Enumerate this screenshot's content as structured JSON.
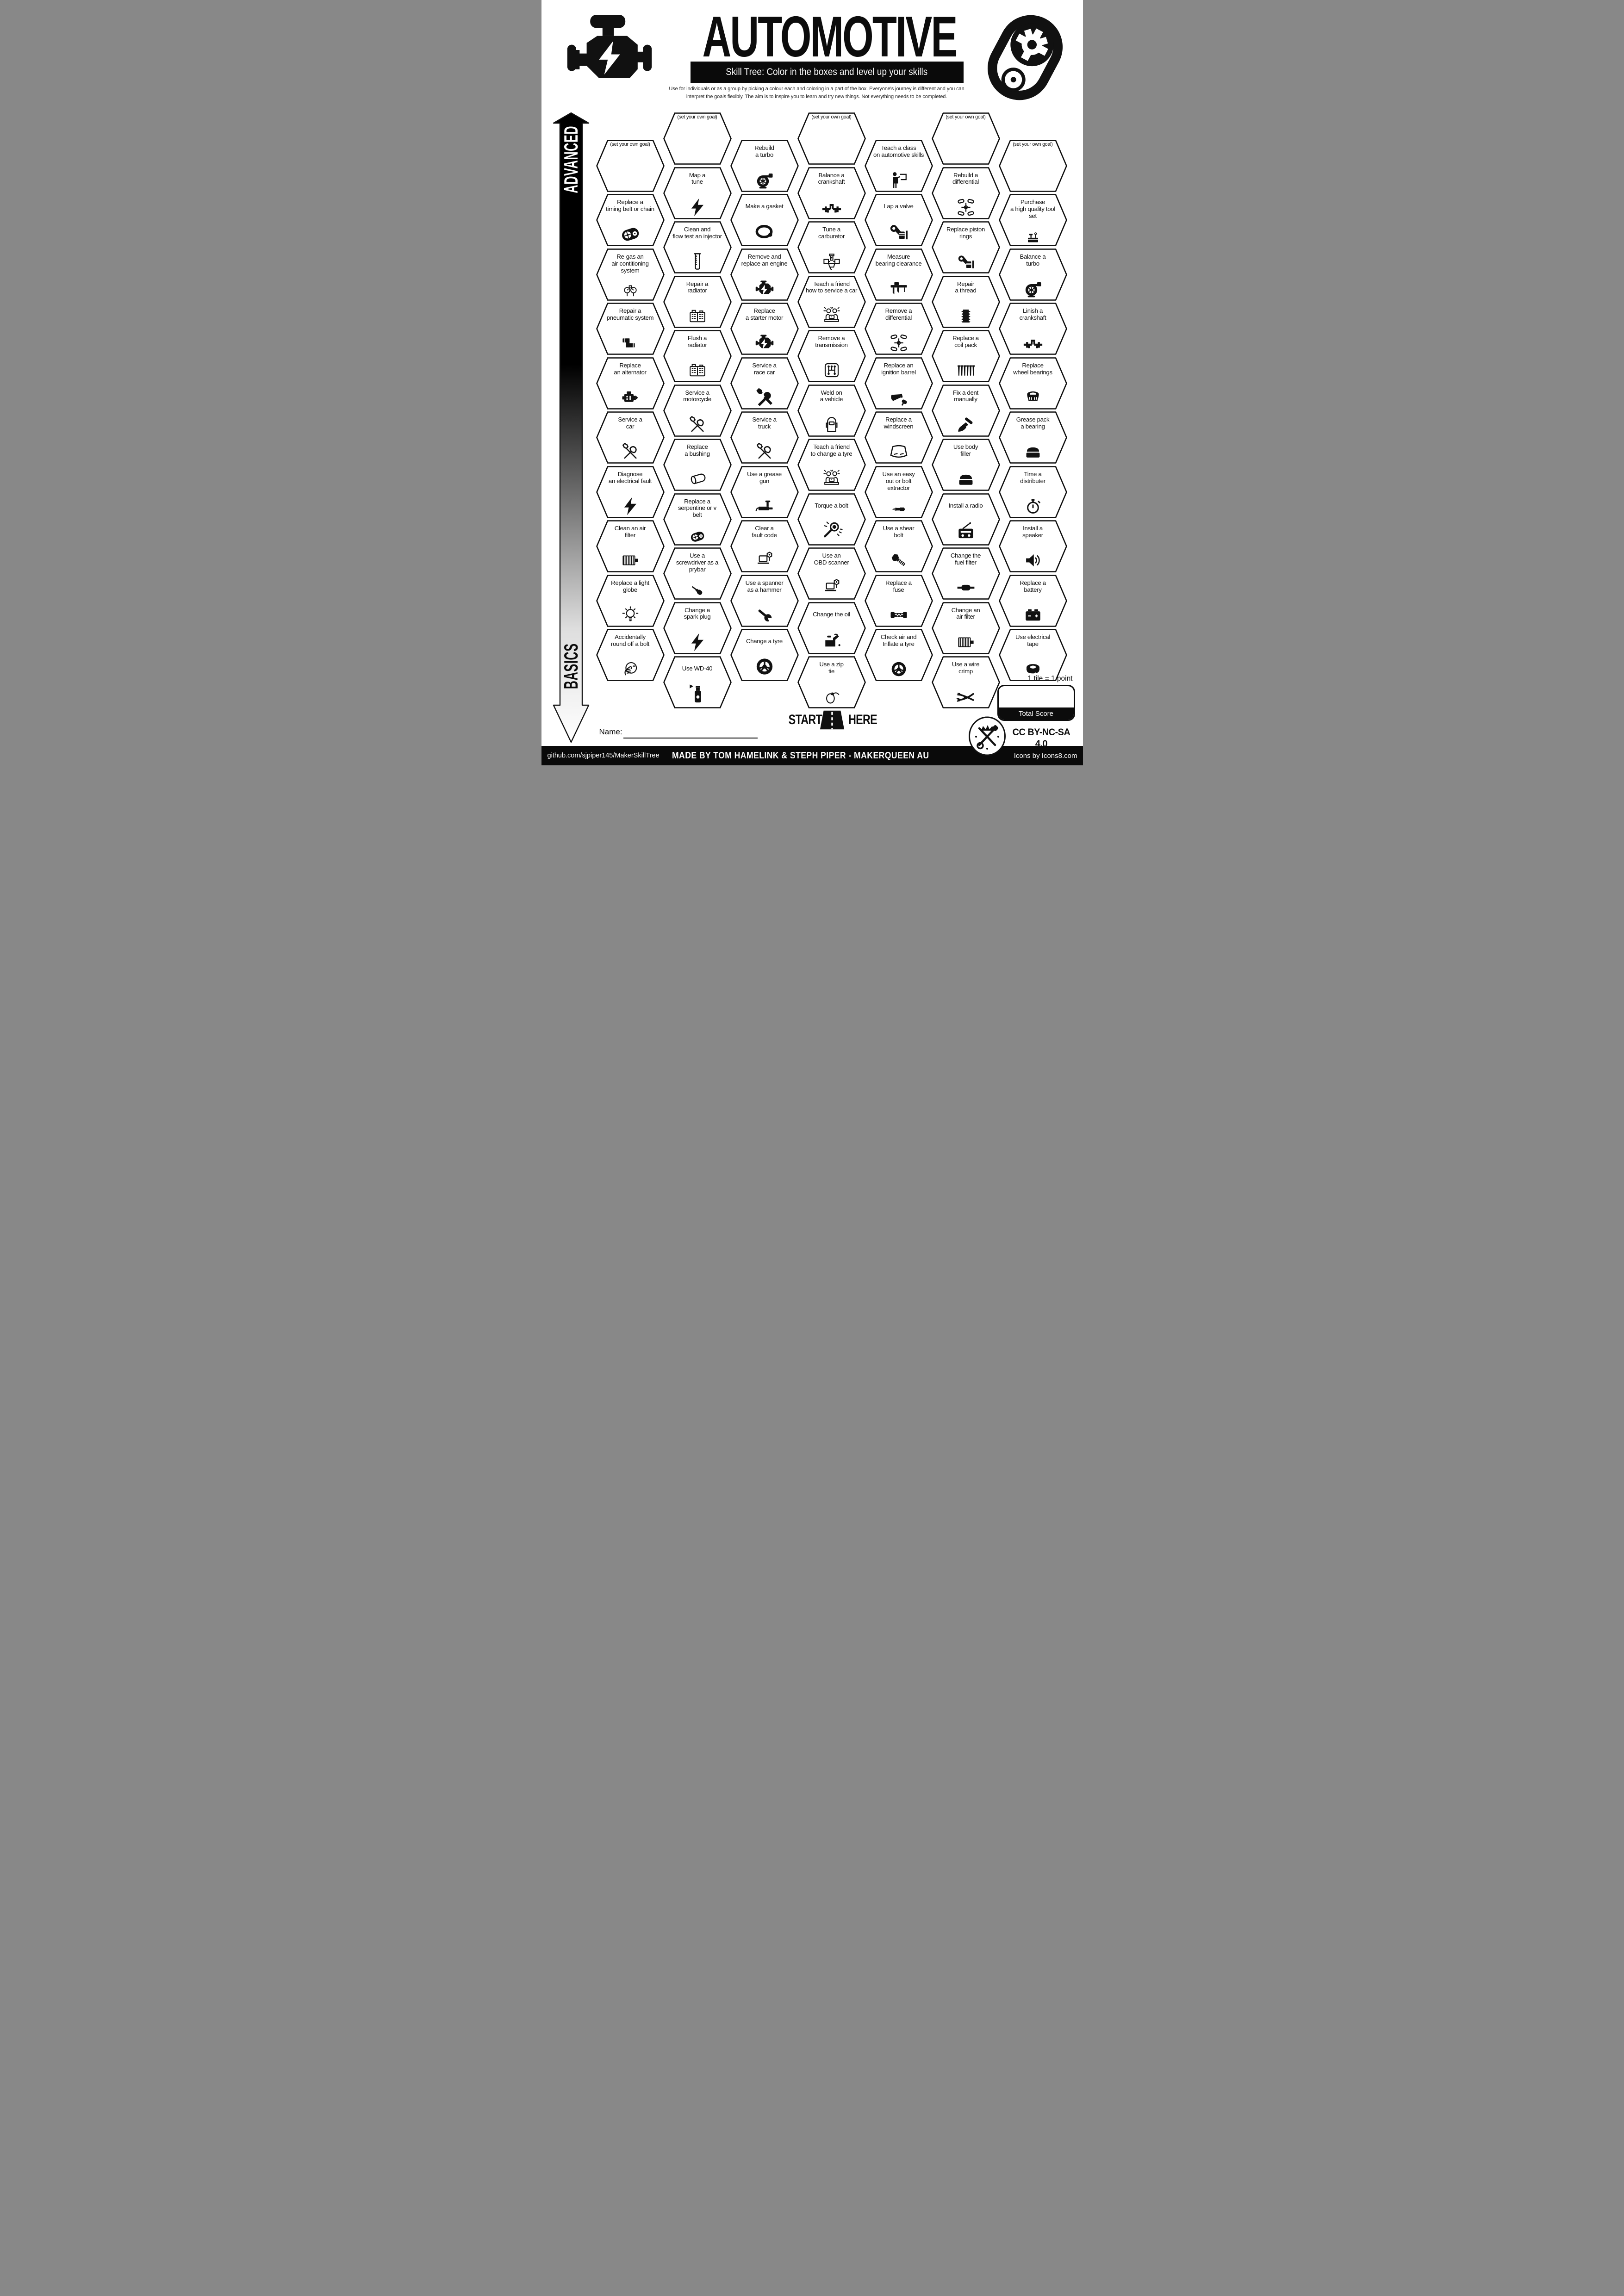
{
  "colors": {
    "ink": "#0c0c0c",
    "paper": "#ffffff"
  },
  "header": {
    "title": "AUTOMOTIVE",
    "subtitle": "Skill Tree:  Color in the boxes and level up your skills",
    "description_line1": "Use for individuals or as a group by picking a colour each and coloring in a part of the box.  Everyone's journey is different and you can",
    "description_line2": "interpret the goals flexibly.  The aim is to inspire you to learn and try new things. Not everything needs to be completed."
  },
  "axis": {
    "top_label": "ADVANCED",
    "bottom_label": "BASICS"
  },
  "goal_label": "(set your own goal)",
  "start": {
    "start_label": "START",
    "here_label": "HERE"
  },
  "name_label": "Name:",
  "score": {
    "tile_note": "1 tile = 1 point",
    "total_label": "Total Score"
  },
  "license_label": "CC BY-NC-SA 4.0",
  "footer": {
    "left": "github.com/sjpiper145/MakerSkillTree",
    "center": "MADE BY TOM HAMELINK & STEPH PIPER  -  MAKERQUEEN AU",
    "right": "Icons by Icons8.com"
  },
  "columns": [
    {
      "items": [
        {
          "goal": true
        },
        {
          "label": [
            "Replace a",
            "timing belt or chain"
          ],
          "icon": "belt"
        },
        {
          "label": [
            "Re-gas an",
            "air contitioning",
            "system"
          ],
          "icon": "gauges"
        },
        {
          "label": [
            "Repair a",
            "pneumatic system"
          ],
          "icon": "pipe"
        },
        {
          "label": [
            "Replace",
            "an alternator"
          ],
          "icon": "alternator"
        },
        {
          "label": [
            "Service a",
            "car"
          ],
          "icon": "tools-o"
        },
        {
          "label": [
            "Diagnose",
            "an electrical fault"
          ],
          "icon": "bolt"
        },
        {
          "label": [
            "Clean an air",
            "filter"
          ],
          "icon": "airfilter"
        },
        {
          "label": [
            "Replace a light",
            "globe"
          ],
          "icon": "bulb"
        },
        {
          "label": [
            "Accidentally",
            "round off a bolt"
          ],
          "icon": "facepalm"
        }
      ]
    },
    {
      "items": [
        {
          "goal": true
        },
        {
          "label": [
            "Map a",
            "tune"
          ],
          "icon": "bolt"
        },
        {
          "label": [
            "Clean and",
            "flow test an injector"
          ],
          "icon": "beaker"
        },
        {
          "label": [
            "Repair a",
            "radiator"
          ],
          "icon": "radiator"
        },
        {
          "label": [
            "Flush a",
            "radiator"
          ],
          "icon": "radiator"
        },
        {
          "label": [
            "Service a",
            "motorcycle"
          ],
          "icon": "tools-o"
        },
        {
          "label": [
            "Replace",
            "a bushing"
          ],
          "icon": "bushing"
        },
        {
          "label": [
            "Replace a",
            "serpentine or v",
            "belt"
          ],
          "icon": "belt"
        },
        {
          "label": [
            "Use a",
            "screwdriver as a",
            "prybar"
          ],
          "icon": "screwdriver"
        },
        {
          "label": [
            "Change a",
            "spark plug"
          ],
          "icon": "bolt"
        },
        {
          "label": [
            "Use WD-40"
          ],
          "icon": "spray"
        }
      ]
    },
    {
      "items": [
        {
          "label": [
            "Rebuild",
            "a turbo"
          ],
          "icon": "turbo"
        },
        {
          "label": [
            "Make a gasket"
          ],
          "icon": "gasket"
        },
        {
          "label": [
            "Remove and",
            "replace an engine"
          ],
          "icon": "engine"
        },
        {
          "label": [
            "Replace",
            "a starter motor"
          ],
          "icon": "engine"
        },
        {
          "label": [
            "Service a",
            "race car"
          ],
          "icon": "tools-s"
        },
        {
          "label": [
            "Service a",
            "truck"
          ],
          "icon": "tools-o"
        },
        {
          "label": [
            "Use a grease",
            "gun"
          ],
          "icon": "greasegun"
        },
        {
          "label": [
            "Clear a",
            "fault code"
          ],
          "icon": "laptop"
        },
        {
          "label": [
            "Use a spanner",
            "as a hammer"
          ],
          "icon": "wrench"
        },
        {
          "label": [
            "Change a tyre"
          ],
          "icon": "wheel"
        }
      ]
    },
    {
      "items": [
        {
          "goal": true
        },
        {
          "label": [
            "Balance a",
            "crankshaft"
          ],
          "icon": "crank"
        },
        {
          "label": [
            "Tune a",
            "carburetor"
          ],
          "icon": "carb"
        },
        {
          "label": [
            "Teach a friend",
            "how to service a car"
          ],
          "icon": "people"
        },
        {
          "label": [
            "Remove a",
            "transmission"
          ],
          "icon": "trans"
        },
        {
          "label": [
            "Weld on",
            "a vehicle"
          ],
          "icon": "helmet"
        },
        {
          "label": [
            "Teach a friend",
            "to change a tyre"
          ],
          "icon": "people"
        },
        {
          "label": [
            "Torque a bolt"
          ],
          "icon": "torque"
        },
        {
          "label": [
            "Use an",
            "OBD scanner"
          ],
          "icon": "laptop"
        },
        {
          "label": [
            "Change the oil"
          ],
          "icon": "oilcan"
        },
        {
          "label": [
            "Use a zip",
            "tie"
          ],
          "icon": "ziptie"
        }
      ]
    },
    {
      "items": [
        {
          "label": [
            "Teach a class",
            "on automotive skills"
          ],
          "icon": "teacher"
        },
        {
          "label": [
            "Lap a valve"
          ],
          "icon": "piston"
        },
        {
          "label": [
            "Measure",
            "bearing clearance"
          ],
          "icon": "caliper"
        },
        {
          "label": [
            "Remove a",
            "differential"
          ],
          "icon": "diff"
        },
        {
          "label": [
            "Replace an",
            "ignition barrel"
          ],
          "icon": "ignition"
        },
        {
          "label": [
            "Replace a",
            "windscreen"
          ],
          "icon": "windscreen"
        },
        {
          "label": [
            "Use an easy",
            "out or bolt",
            "extractor"
          ],
          "icon": "extractor"
        },
        {
          "label": [
            "Use a shear",
            "bolt"
          ],
          "icon": "shearbolt"
        },
        {
          "label": [
            "Replace a",
            "fuse"
          ],
          "icon": "fuse"
        },
        {
          "label": [
            "Check air and",
            "Inflate a tyre"
          ],
          "icon": "wheel"
        }
      ]
    },
    {
      "items": [
        {
          "goal": true
        },
        {
          "label": [
            "Rebuild a",
            "differential"
          ],
          "icon": "diff"
        },
        {
          "label": [
            "Replace piston",
            "rings"
          ],
          "icon": "piston"
        },
        {
          "label": [
            "Repair",
            "a thread"
          ],
          "icon": "thread"
        },
        {
          "label": [
            "Replace a",
            "coil pack"
          ],
          "icon": "coils"
        },
        {
          "label": [
            "Fix a dent",
            "manually"
          ],
          "icon": "dentpuller"
        },
        {
          "label": [
            "Use body",
            "filler"
          ],
          "icon": "tub"
        },
        {
          "label": [
            "Install a radio"
          ],
          "icon": "radio"
        },
        {
          "label": [
            "Change the",
            "fuel filter"
          ],
          "icon": "fuelfilter"
        },
        {
          "label": [
            "Change an",
            "air filter"
          ],
          "icon": "airfilter"
        },
        {
          "label": [
            "Use a wire",
            "crimp"
          ],
          "icon": "crimper"
        }
      ]
    },
    {
      "items": [
        {
          "goal": true
        },
        {
          "label": [
            "Purchase",
            "a high quality tool",
            "set"
          ],
          "icon": "toolbox"
        },
        {
          "label": [
            "Balance a",
            "turbo"
          ],
          "icon": "turbo"
        },
        {
          "label": [
            "Linish a",
            "crankshaft"
          ],
          "icon": "crank"
        },
        {
          "label": [
            "Replace",
            "wheel bearings"
          ],
          "icon": "bearing"
        },
        {
          "label": [
            "Grease pack",
            "a bearing"
          ],
          "icon": "tub"
        },
        {
          "label": [
            "Time a",
            "distributer"
          ],
          "icon": "stopwatch"
        },
        {
          "label": [
            "Install a",
            "speaker"
          ],
          "icon": "speaker"
        },
        {
          "label": [
            "Replace a",
            "battery"
          ],
          "icon": "battery"
        },
        {
          "label": [
            "Use electrical",
            "tape"
          ],
          "icon": "tape"
        }
      ]
    }
  ]
}
